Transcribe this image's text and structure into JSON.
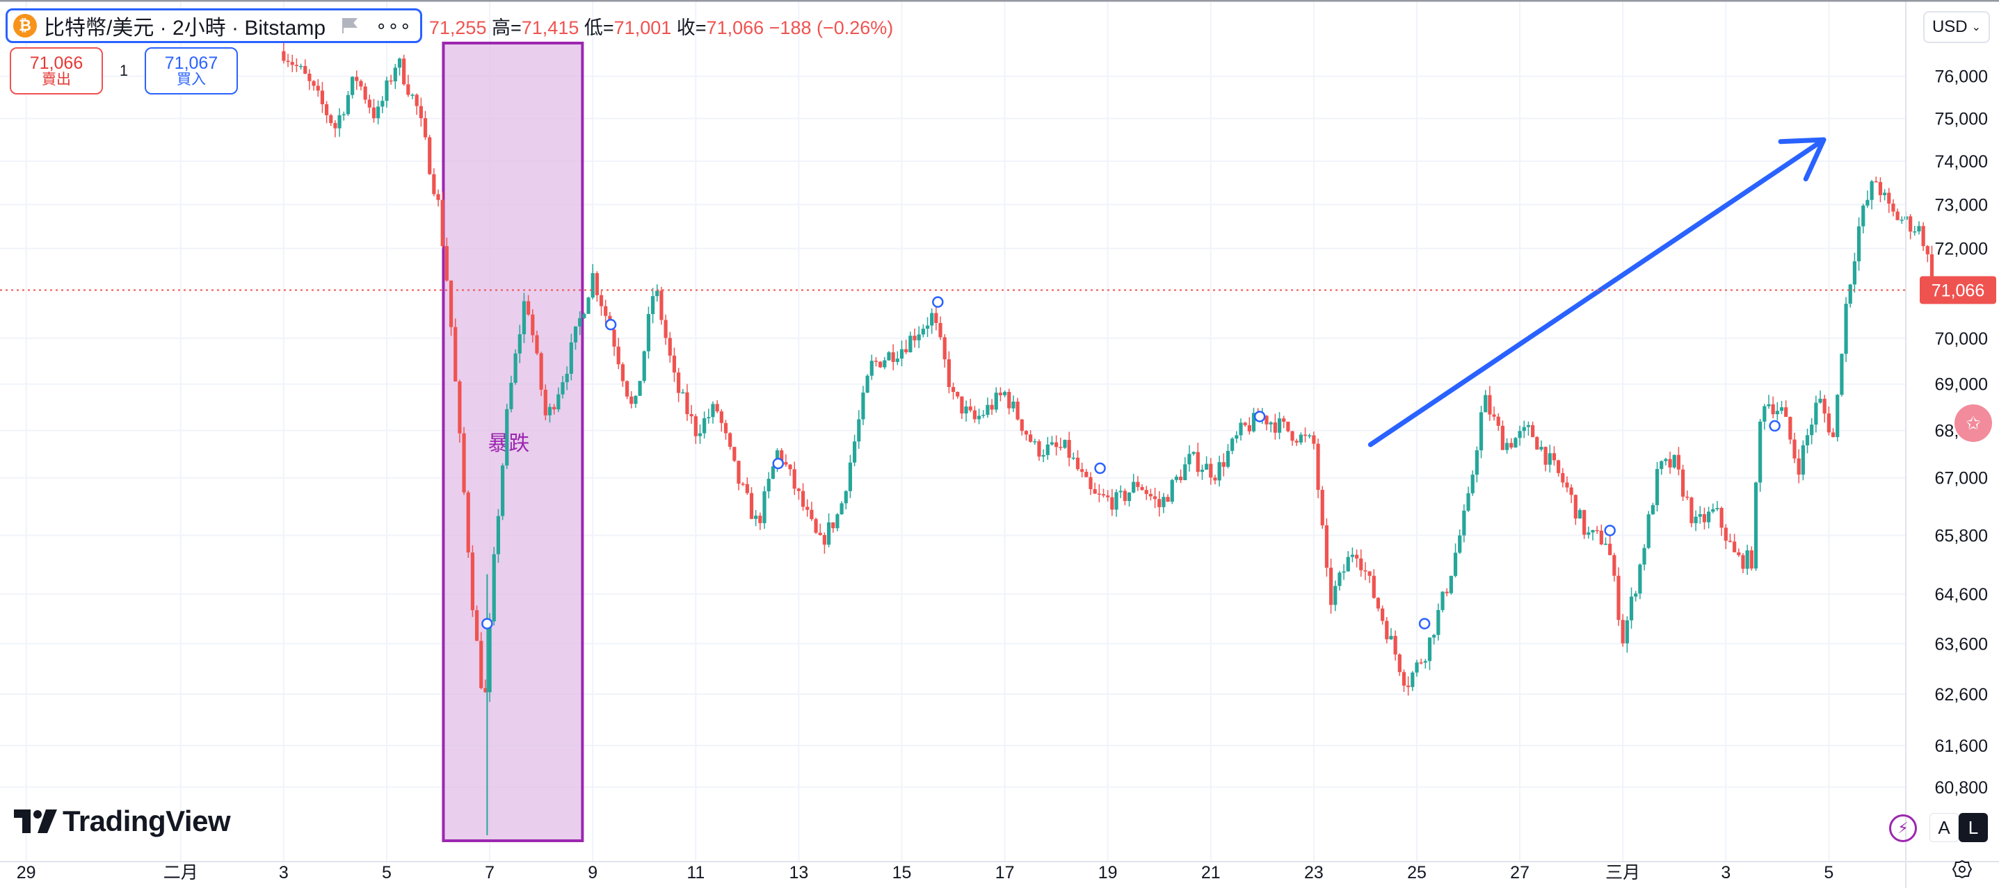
{
  "header": {
    "symbol_title": "比特幣/美元 · 2小時 · Bitstamp",
    "coin_icon": "bitcoin-icon",
    "ohlc": {
      "open_label": "",
      "open_value": "71,255",
      "high_label": "高=",
      "high_value": "71,415",
      "low_label": "低=",
      "low_value": "71,001",
      "close_label": "收=",
      "close_value": "71,066",
      "change": "−188 (−0.26%)"
    }
  },
  "trade": {
    "sell_price": "71,066",
    "sell_label": "賣出",
    "quantity": "1",
    "buy_price": "71,067",
    "buy_label": "買入"
  },
  "currency": "USD",
  "logo_text": "TradingView",
  "scale_buttons": {
    "auto": "A",
    "log": "L"
  },
  "colors": {
    "up": "#26a69a",
    "down": "#ef5350",
    "last_price": "#ef5350",
    "highlight_fill": "#e1bee7",
    "highlight_border": "#9c27b0",
    "arrow": "#2962ff",
    "grid": "#f0f3fa"
  },
  "chart_data": {
    "type": "candlestick",
    "y_axis_ticks": [
      76000,
      75000,
      74000,
      73000,
      72000,
      70000,
      69000,
      68000,
      67000,
      65800,
      64600,
      63600,
      62600,
      61600,
      60800
    ],
    "y_axis_labels": [
      "76,000",
      "75,000",
      "74,000",
      "73,000",
      "72,000",
      "70,000",
      "69,000",
      "68,000",
      "67,000",
      "65,800",
      "64,600",
      "63,600",
      "62,600",
      "61,600",
      "60,800"
    ],
    "x_axis_labels": [
      {
        "t": 0,
        "label": "29"
      },
      {
        "t": 3,
        "label": "二月"
      },
      {
        "t": 5,
        "label": "3"
      },
      {
        "t": 7,
        "label": "5"
      },
      {
        "t": 9,
        "label": "7"
      },
      {
        "t": 11,
        "label": "9"
      },
      {
        "t": 13,
        "label": "11"
      },
      {
        "t": 15,
        "label": "13"
      },
      {
        "t": 17,
        "label": "15"
      },
      {
        "t": 19,
        "label": "17"
      },
      {
        "t": 21,
        "label": "19"
      },
      {
        "t": 23,
        "label": "21"
      },
      {
        "t": 25,
        "label": "23"
      },
      {
        "t": 27,
        "label": "25"
      },
      {
        "t": 29,
        "label": "27"
      },
      {
        "t": 31,
        "label": "三月"
      },
      {
        "t": 33,
        "label": "3"
      },
      {
        "t": 35,
        "label": "5"
      }
    ],
    "last_price": 71066,
    "last_price_label": "71,066",
    "price_path": [
      [
        5.0,
        76600
      ],
      [
        5.4,
        76000
      ],
      [
        6.0,
        74800
      ],
      [
        6.4,
        76000
      ],
      [
        6.8,
        75000
      ],
      [
        7.2,
        76400
      ],
      [
        7.6,
        75200
      ],
      [
        8.0,
        73000
      ],
      [
        8.2,
        71000
      ],
      [
        8.4,
        68000
      ],
      [
        8.7,
        64000
      ],
      [
        8.9,
        62300
      ],
      [
        9.1,
        65500
      ],
      [
        9.35,
        68500
      ],
      [
        9.7,
        71000
      ],
      [
        10.1,
        68200
      ],
      [
        10.5,
        69400
      ],
      [
        11.0,
        71400
      ],
      [
        11.4,
        70000
      ],
      [
        11.8,
        68300
      ],
      [
        12.2,
        71200
      ],
      [
        12.6,
        69000
      ],
      [
        13.0,
        68000
      ],
      [
        13.4,
        68500
      ],
      [
        13.8,
        67000
      ],
      [
        14.2,
        66000
      ],
      [
        14.6,
        67600
      ],
      [
        15.0,
        66600
      ],
      [
        15.4,
        65600
      ],
      [
        15.8,
        66300
      ],
      [
        16.4,
        69400
      ],
      [
        17.0,
        69800
      ],
      [
        17.6,
        70500
      ],
      [
        18.0,
        68700
      ],
      [
        18.4,
        68200
      ],
      [
        19.0,
        68800
      ],
      [
        19.6,
        67600
      ],
      [
        20.2,
        67600
      ],
      [
        20.7,
        66600
      ],
      [
        21.2,
        66500
      ],
      [
        21.6,
        66900
      ],
      [
        22.0,
        66400
      ],
      [
        22.6,
        67400
      ],
      [
        23.1,
        67100
      ],
      [
        23.6,
        68000
      ],
      [
        24.0,
        68300
      ],
      [
        24.5,
        68000
      ],
      [
        25.0,
        67700
      ],
      [
        25.3,
        64400
      ],
      [
        25.8,
        65600
      ],
      [
        26.3,
        64200
      ],
      [
        26.8,
        62800
      ],
      [
        27.2,
        63500
      ],
      [
        27.6,
        64800
      ],
      [
        28.0,
        66500
      ],
      [
        28.3,
        68700
      ],
      [
        28.7,
        67700
      ],
      [
        29.2,
        68000
      ],
      [
        29.6,
        67300
      ],
      [
        29.9,
        66800
      ],
      [
        30.3,
        65800
      ],
      [
        30.7,
        65700
      ],
      [
        31.0,
        63700
      ],
      [
        31.3,
        65000
      ],
      [
        31.7,
        67200
      ],
      [
        32.0,
        67300
      ],
      [
        32.4,
        66000
      ],
      [
        32.8,
        66300
      ],
      [
        33.2,
        65300
      ],
      [
        33.5,
        65300
      ],
      [
        33.7,
        68700
      ],
      [
        34.1,
        68400
      ],
      [
        34.4,
        67200
      ],
      [
        34.8,
        68700
      ],
      [
        35.1,
        67800
      ],
      [
        35.3,
        70500
      ],
      [
        35.6,
        72600
      ],
      [
        35.9,
        73600
      ],
      [
        36.2,
        72800
      ],
      [
        36.5,
        72600
      ],
      [
        36.8,
        72400
      ],
      [
        37.0,
        71300
      ],
      [
        37.2,
        71000
      ],
      [
        37.4,
        71066
      ]
    ],
    "drop_annotation": {
      "t_start": 8.1,
      "t_end": 10.8,
      "label": "暴跌"
    },
    "trend_arrow": {
      "from": [
        26.1,
        67700
      ],
      "to": [
        34.9,
        74500
      ]
    }
  }
}
